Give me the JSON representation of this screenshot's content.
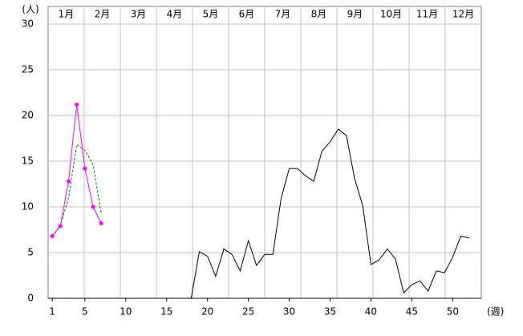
{
  "chart_data": {
    "type": "line",
    "y_unit_label": "(人)",
    "x_unit_label": "(週)",
    "months": [
      "1月",
      "2月",
      "3月",
      "4月",
      "5月",
      "6月",
      "7月",
      "8月",
      "9月",
      "10月",
      "11月",
      "12月"
    ],
    "x": [
      1,
      2,
      3,
      4,
      5,
      6,
      7,
      8,
      9,
      10,
      11,
      12,
      13,
      14,
      15,
      16,
      17,
      18,
      19,
      20,
      21,
      22,
      23,
      24,
      25,
      26,
      27,
      28,
      29,
      30,
      31,
      32,
      33,
      34,
      35,
      36,
      37,
      38,
      39,
      40,
      41,
      42,
      43,
      44,
      45,
      46,
      47,
      48,
      49,
      50,
      51,
      52
    ],
    "xlim": [
      0.5,
      53.5
    ],
    "xticks": [
      1,
      5,
      10,
      15,
      20,
      25,
      30,
      35,
      40,
      45,
      50
    ],
    "ylim": [
      0,
      30
    ],
    "yticks": [
      0,
      5,
      10,
      15,
      20,
      25,
      30
    ],
    "grid": true,
    "series": [
      {
        "color": "#000000",
        "dash": false,
        "markers": false,
        "values": [
          0,
          0,
          0,
          0,
          0,
          0,
          0,
          0,
          0,
          0,
          0,
          0,
          0,
          0,
          0,
          0,
          0,
          0,
          5.1,
          4.6,
          2.4,
          5.4,
          4.8,
          3.0,
          6.3,
          3.6,
          4.8,
          4.8,
          10.9,
          14.2,
          14.2,
          13.4,
          12.8,
          16.1,
          17.1,
          18.5,
          17.8,
          13.1,
          10.1,
          3.7,
          4.2,
          5.4,
          4.3,
          0.6,
          1.5,
          1.9,
          0.8,
          3.0,
          2.8,
          4.5,
          6.8,
          6.6
        ]
      },
      {
        "color": "#008000",
        "dash": true,
        "markers": false,
        "values": [
          6.8,
          8.0,
          11.0,
          16.8,
          16.2,
          14.6,
          9.3,
          null,
          null,
          null,
          null,
          null,
          null,
          null,
          null,
          null,
          null,
          null,
          null,
          null,
          null,
          null,
          null,
          null,
          null,
          null,
          null,
          null,
          null,
          null,
          null,
          null,
          null,
          null,
          null,
          null,
          null,
          null,
          null,
          null,
          null,
          null,
          null,
          null,
          null,
          null,
          null,
          null,
          null,
          null,
          null,
          null
        ]
      },
      {
        "color": "#ff00ff",
        "dash": false,
        "markers": true,
        "values": [
          6.8,
          7.9,
          12.8,
          21.2,
          14.2,
          10.0,
          8.2,
          null,
          null,
          null,
          null,
          null,
          null,
          null,
          null,
          null,
          null,
          null,
          null,
          null,
          null,
          null,
          null,
          null,
          null,
          null,
          null,
          null,
          null,
          null,
          null,
          null,
          null,
          null,
          null,
          null,
          null,
          null,
          null,
          null,
          null,
          null,
          null,
          null,
          null,
          null,
          null,
          null,
          null,
          null,
          null,
          null
        ]
      }
    ]
  }
}
